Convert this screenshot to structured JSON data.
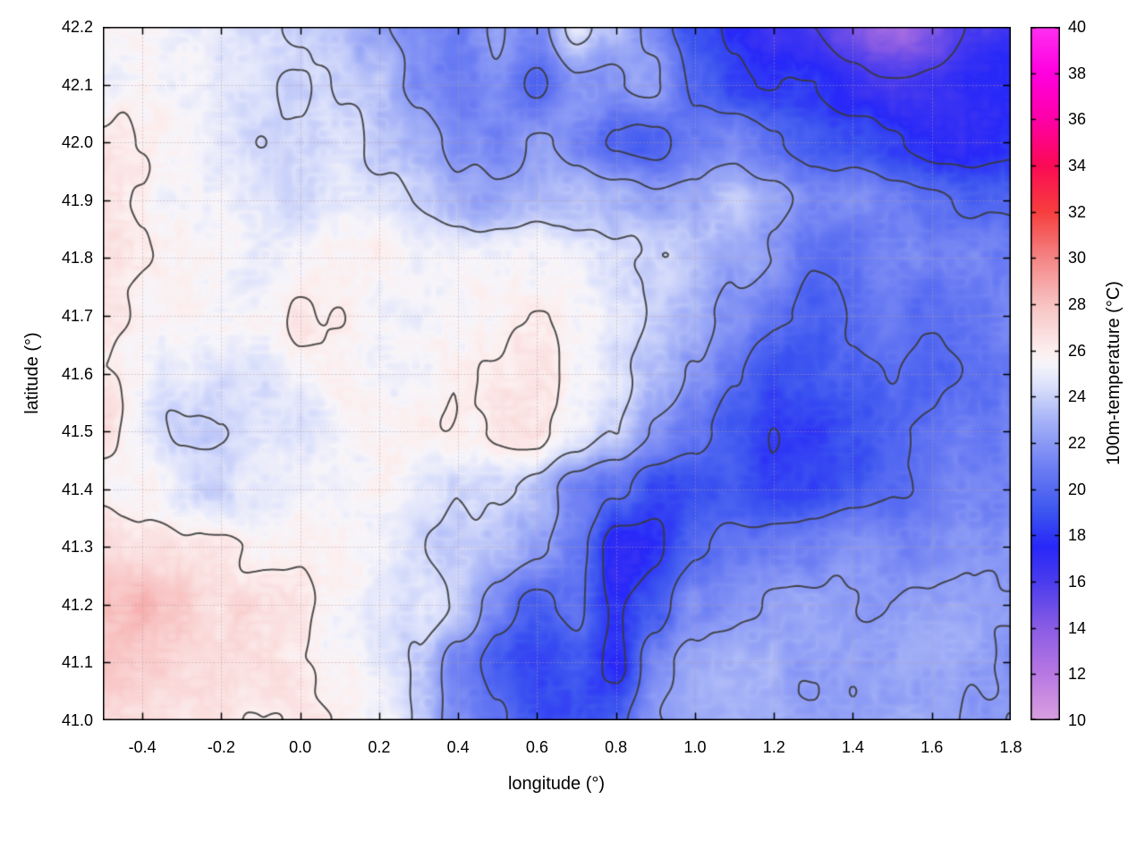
{
  "chart_data": {
    "type": "heatmap",
    "title": "",
    "xlabel": "longitude (°)",
    "ylabel": "latitude (°)",
    "colorbar_label": "100m-temperature (°C)",
    "xlim": [
      -0.5,
      1.8
    ],
    "ylim": [
      41.0,
      42.2
    ],
    "xticks": [
      "-0.4",
      "-0.2",
      "0.0",
      "0.2",
      "0.4",
      "0.6",
      "0.8",
      "1.0",
      "1.2",
      "1.4",
      "1.6",
      "1.8"
    ],
    "yticks": [
      "41.0",
      "41.1",
      "41.2",
      "41.3",
      "41.4",
      "41.5",
      "41.6",
      "41.7",
      "41.8",
      "41.9",
      "42.0",
      "42.1",
      "42.2"
    ],
    "grid": true,
    "legend_position": "none",
    "contour_levels": [
      16,
      18,
      20,
      22,
      24,
      26
    ],
    "colorbar": {
      "range": [
        10,
        40
      ],
      "ticks": [
        "10",
        "12",
        "14",
        "16",
        "18",
        "20",
        "22",
        "24",
        "26",
        "28",
        "30",
        "32",
        "34",
        "36",
        "38",
        "40"
      ],
      "stops": [
        [
          10,
          "#d9a0e0"
        ],
        [
          12,
          "#b878e2"
        ],
        [
          14,
          "#8a5ce4"
        ],
        [
          16,
          "#4a3cee"
        ],
        [
          17.5,
          "#2828f8"
        ],
        [
          19,
          "#3c55f0"
        ],
        [
          21,
          "#6f80f3"
        ],
        [
          23,
          "#a7b4f7"
        ],
        [
          24.5,
          "#dde2fb"
        ],
        [
          25.4,
          "#f7f5fa"
        ],
        [
          26,
          "#fceeee"
        ],
        [
          28,
          "#f8c2c2"
        ],
        [
          30,
          "#f48484"
        ],
        [
          32,
          "#f73e3e"
        ],
        [
          34,
          "#fb0a55"
        ],
        [
          36,
          "#fe00a8"
        ],
        [
          38,
          "#ff00e0"
        ],
        [
          40,
          "#ff30f0"
        ]
      ]
    },
    "field": {
      "x0": -0.5,
      "dx": 0.1,
      "nx": 24,
      "y0": 41.0,
      "dy": 0.1,
      "ny": 13,
      "order": "rows south to north, 100m-temperature in °C",
      "values_c": [
        [
          26.5,
          26.5,
          26.5,
          26.5,
          26,
          26,
          25.5,
          25,
          24,
          21.5,
          20,
          18.5,
          18.5,
          19.5,
          22,
          22.5,
          22.5,
          22.5,
          22.5,
          22.5,
          22.5,
          22.5,
          22,
          22
        ],
        [
          27.5,
          27.5,
          27,
          27,
          26.5,
          26,
          25.5,
          25,
          24,
          21,
          19,
          18,
          19,
          17.5,
          21,
          22.5,
          22.5,
          22.5,
          22.5,
          22.5,
          22.5,
          22.5,
          22.5,
          22
        ],
        [
          28,
          28,
          27.5,
          27,
          26.5,
          26.5,
          26,
          25,
          24.5,
          23.5,
          21,
          19.5,
          20.5,
          17.5,
          19,
          21.5,
          22,
          22,
          22,
          22,
          22,
          22,
          22,
          22
        ],
        [
          27,
          26.5,
          26.5,
          26.5,
          26,
          25.5,
          25.5,
          25,
          24,
          23.5,
          23,
          22,
          20.5,
          17.5,
          17.5,
          19.5,
          20.5,
          21,
          21,
          21.5,
          21.5,
          21.5,
          22,
          22
        ],
        [
          26,
          25.5,
          24.5,
          24.5,
          24.5,
          25,
          25.5,
          25.5,
          25,
          24.5,
          24,
          23,
          21.5,
          20,
          18.5,
          18.5,
          19,
          18.5,
          18.5,
          19.5,
          20,
          20.5,
          21,
          21.5
        ],
        [
          26.5,
          25,
          24,
          24,
          24.5,
          24.5,
          25,
          25.5,
          25.5,
          26,
          26.5,
          26.5,
          25,
          23.5,
          22,
          20.5,
          19,
          18,
          18,
          19,
          20,
          20,
          20.5,
          21
        ],
        [
          26,
          25.5,
          25,
          24.5,
          24.5,
          25,
          25.5,
          25,
          25.5,
          26,
          26.5,
          26.5,
          25.5,
          24.5,
          23.5,
          22,
          20,
          18.5,
          19,
          19.5,
          20,
          19.5,
          20,
          20.5
        ],
        [
          26.5,
          26,
          26,
          25.5,
          25.5,
          26,
          26,
          25.5,
          25.5,
          25.5,
          26,
          26,
          25.5,
          25,
          24,
          23,
          21.5,
          20,
          19.5,
          20,
          20.5,
          20,
          20.5,
          21
        ],
        [
          26.5,
          26.5,
          26,
          25.5,
          25,
          25.5,
          26,
          26,
          25.5,
          25.5,
          25.5,
          25.5,
          25,
          24.5,
          24,
          23.5,
          22.5,
          21.5,
          20.5,
          20,
          21,
          21,
          21.5,
          20.5
        ],
        [
          26.5,
          26,
          25.5,
          25,
          24.5,
          24.5,
          25,
          24.5,
          24,
          23,
          22.5,
          23,
          23.5,
          22.5,
          22,
          22.5,
          23.5,
          22.5,
          21.5,
          21,
          20.5,
          20,
          19.5,
          19.5
        ],
        [
          26,
          26,
          25.5,
          25,
          24.5,
          24.5,
          24.5,
          24,
          23,
          21.5,
          21,
          22,
          21,
          19.5,
          19,
          20.5,
          21,
          20,
          19,
          18.5,
          18,
          17.5,
          17.5,
          18
        ],
        [
          25.5,
          25.5,
          25,
          24.5,
          24.5,
          24,
          24.5,
          23.5,
          21.5,
          20.5,
          21.5,
          20,
          22,
          21.5,
          22.5,
          20,
          18.5,
          18,
          17.5,
          17,
          16.5,
          16.5,
          17,
          17
        ],
        [
          25.5,
          25.5,
          25,
          24.5,
          24,
          24,
          23.5,
          22.5,
          21.5,
          21,
          22,
          21.5,
          25,
          23,
          21.5,
          19,
          17.5,
          16.5,
          16,
          14.5,
          13.5,
          14.5,
          16,
          16.5
        ]
      ]
    },
    "style": {
      "contour_color": "#383838",
      "grid_color": "#b89aa0",
      "frame_color": "#000000",
      "background": "#ffffff"
    }
  }
}
